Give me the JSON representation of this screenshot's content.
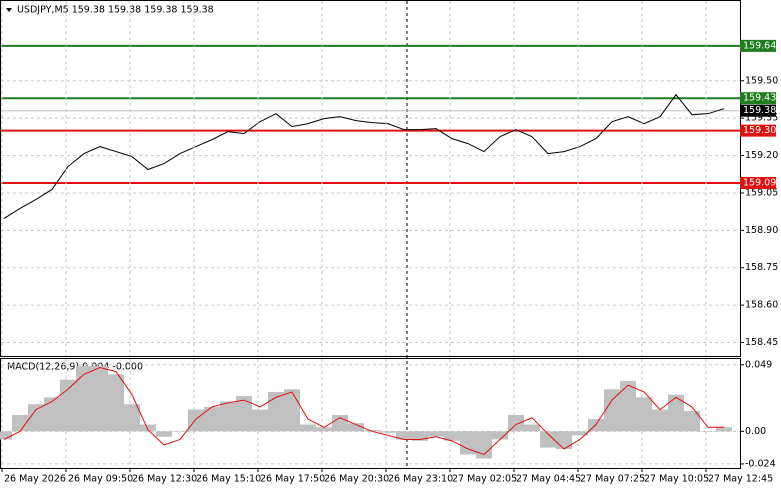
{
  "chart_data": [
    {
      "type": "line",
      "title": "USDJPY,M5  159.38 159.38 159.38 159.38",
      "color": "#000000",
      "grid": true,
      "values": [
        158.948,
        158.988,
        159.024,
        159.064,
        159.156,
        159.208,
        159.236,
        159.216,
        159.196,
        159.144,
        159.168,
        159.208,
        159.236,
        159.264,
        159.296,
        159.288,
        159.336,
        159.368,
        159.316,
        159.328,
        159.348,
        159.356,
        159.34,
        159.332,
        159.328,
        159.304,
        159.304,
        159.308,
        159.268,
        159.248,
        159.216,
        159.276,
        159.304,
        159.276,
        159.208,
        159.216,
        159.236,
        159.268,
        159.336,
        159.356,
        159.328,
        159.356,
        159.444,
        159.364,
        159.368,
        159.388
      ],
      "ylim": [
        158.396,
        159.816
      ],
      "yticks": [
        {
          "value": 159.5,
          "label": "159.50"
        },
        159.35,
        {
          "value": 159.2,
          "label": "159.20"
        },
        159.05,
        {
          "value": 158.9,
          "label": "158.90"
        },
        158.75,
        {
          "value": 158.6,
          "label": "158.60"
        },
        158.45
      ],
      "levels": [
        {
          "value": 159.64,
          "label": "159.64",
          "color": "#1e7b1e"
        },
        {
          "value": 159.43,
          "label": "159.43",
          "color": "#1e7b1e"
        },
        {
          "value": 159.3,
          "label": "159.30",
          "color": "#e01010"
        },
        {
          "value": 159.09,
          "label": "159.09",
          "color": "#e01010"
        }
      ],
      "last": {
        "value": 159.38,
        "label": "159.38"
      }
    },
    {
      "type": "macd",
      "title": "MACD(12,26,9) 0.004 -0.000",
      "grid": true,
      "categories": [
        "26 May 2026",
        null,
        null,
        null,
        "26 May 09:50",
        null,
        null,
        null,
        "26 May 12:30",
        null,
        null,
        null,
        "26 May 15:10",
        null,
        null,
        null,
        "26 May 17:50",
        null,
        null,
        null,
        "26 May 20:30",
        null,
        null,
        null,
        "26 May 23:10",
        null,
        null,
        null,
        "27 May 02:05",
        null,
        null,
        null,
        "27 May 04:45",
        null,
        null,
        null,
        "27 May 07:25",
        null,
        null,
        null,
        "27 May 10:05",
        null,
        null,
        null,
        "27 May 12:45",
        null
      ],
      "series": [
        {
          "color": "#c0c0c0",
          "values": [
            -0.006,
            0.012,
            0.02,
            0.025,
            0.038,
            0.048,
            0.048,
            0.042,
            0.02,
            0.005,
            -0.004,
            0.0,
            0.016,
            0.018,
            0.022,
            0.026,
            0.016,
            0.029,
            0.031,
            0.005,
            0.003,
            0.012,
            0.006,
            0.001,
            -0.001,
            -0.006,
            -0.007,
            -0.004,
            -0.007,
            -0.017,
            -0.02,
            -0.006,
            0.012,
            0.005,
            -0.012,
            -0.013,
            -0.003,
            0.009,
            0.031,
            0.037,
            0.025,
            0.016,
            0.027,
            0.015,
            0.0,
            0.003
          ]
        },
        {
          "color": "#e01010",
          "values": [
            -0.006,
            0.0,
            0.016,
            0.022,
            0.031,
            0.042,
            0.047,
            0.044,
            0.027,
            0.001,
            -0.01,
            -0.006,
            0.009,
            0.018,
            0.021,
            0.023,
            0.018,
            0.025,
            0.029,
            0.009,
            0.003,
            0.01,
            0.005,
            0.0,
            -0.003,
            -0.006,
            -0.006,
            -0.004,
            -0.007,
            -0.013,
            -0.017,
            -0.006,
            0.005,
            0.01,
            -0.002,
            -0.013,
            -0.006,
            0.005,
            0.023,
            0.034,
            0.029,
            0.016,
            0.025,
            0.018,
            0.003,
            0.003
          ]
        }
      ],
      "ylim": [
        -0.027,
        0.054
      ],
      "yticks": [
        0.049,
        {
          "value": 0,
          "label": "0.00"
        },
        -0.024
      ]
    }
  ]
}
